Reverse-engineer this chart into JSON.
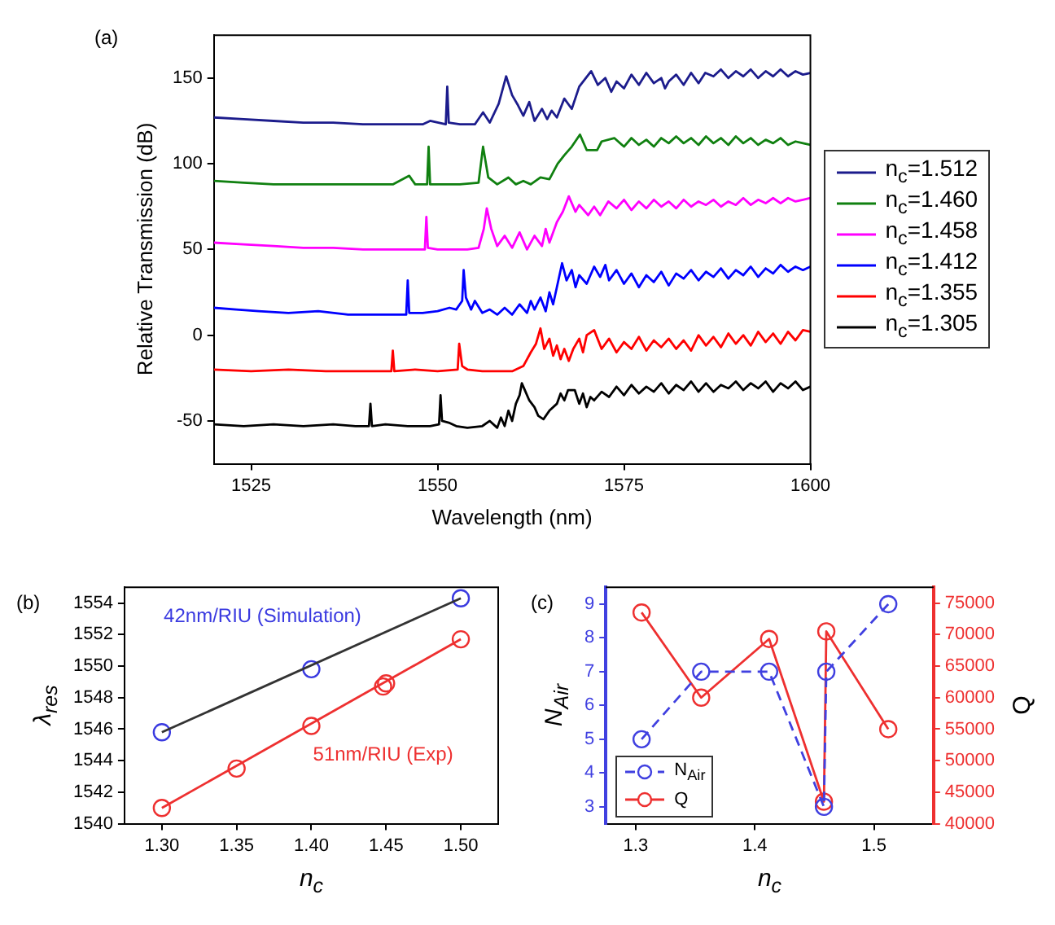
{
  "chart_data": [
    {
      "type": "line",
      "annotations": [
        "(a)"
      ],
      "xlabel": "Wavelength (nm)",
      "ylabel": "Relative Transmission (dB)",
      "xlim": [
        1520,
        1600
      ],
      "xticks": [
        1525,
        1550,
        1575,
        1600
      ],
      "ylim": [
        -75,
        175
      ],
      "yticks": [
        -50,
        0,
        50,
        100,
        150
      ],
      "grid": false,
      "legend": "right",
      "series": [
        {
          "name": "n$_{c}$=1.512",
          "color": "#1c1c8c",
          "x": [
            1520,
            1524,
            1528,
            1532,
            1536,
            1540,
            1544,
            1548,
            1549,
            1551.1,
            1551.3,
            1551.5,
            1553,
            1555,
            1556.1,
            1557,
            1558.2,
            1559.2,
            1560,
            1560.8,
            1561.5,
            1562.3,
            1563,
            1564,
            1564.7,
            1565.3,
            1566,
            1567,
            1568,
            1569,
            1570.6,
            1571.5,
            1572.5,
            1573.3,
            1574,
            1575,
            1576,
            1577,
            1578,
            1579,
            1580,
            1580.5,
            1581,
            1582,
            1583,
            1584,
            1585,
            1585.9,
            1587,
            1588,
            1589,
            1590,
            1591,
            1592,
            1593,
            1594,
            1595,
            1596,
            1597,
            1598,
            1599,
            1600
          ],
          "values": [
            127,
            126,
            125,
            124,
            124,
            123,
            123,
            123,
            125,
            123,
            145,
            124,
            123,
            123,
            130,
            124,
            135,
            151,
            140,
            134,
            128,
            136,
            125,
            132,
            126,
            131,
            127,
            138,
            132,
            145,
            154,
            146,
            150,
            142,
            148,
            144,
            152,
            146,
            153,
            147,
            150,
            144,
            148,
            152,
            146,
            153,
            147,
            153,
            151,
            155,
            150,
            154,
            151,
            155,
            150,
            154,
            151,
            155,
            151,
            154,
            152,
            153
          ]
        },
        {
          "name": "n$_{c}$=1.460",
          "color": "#108010",
          "x": [
            1520,
            1524,
            1528,
            1532,
            1536,
            1540,
            1544,
            1546.2,
            1547,
            1548.6,
            1548.8,
            1549,
            1551,
            1553,
            1555.5,
            1556.1,
            1556.8,
            1558,
            1559.5,
            1560.5,
            1561.5,
            1562.5,
            1563.8,
            1565,
            1566.1,
            1567,
            1568,
            1569.1,
            1570,
            1571.4,
            1572,
            1573.7,
            1575,
            1576,
            1577,
            1578,
            1579,
            1580,
            1581,
            1582,
            1583,
            1584,
            1585,
            1586,
            1587,
            1588,
            1589,
            1590,
            1591,
            1592,
            1593,
            1594,
            1595,
            1596,
            1597,
            1598,
            1599,
            1600
          ],
          "values": [
            90,
            89,
            88,
            88,
            88,
            88,
            88,
            93,
            88,
            88,
            110,
            88,
            88,
            88,
            89,
            110,
            92,
            88,
            92,
            88,
            90,
            88,
            92,
            91,
            100,
            105,
            110,
            117,
            108,
            108,
            113,
            115,
            110,
            115,
            111,
            114,
            110,
            115,
            112,
            116,
            112,
            115,
            111,
            116,
            112,
            115,
            111,
            116,
            112,
            115,
            111,
            114,
            112,
            115,
            111,
            113,
            112,
            111
          ]
        },
        {
          "name": "n$_{c}$=1.458",
          "color": "#ff00ff",
          "x": [
            1520,
            1524,
            1528,
            1532,
            1536,
            1540,
            1544,
            1548.3,
            1548.5,
            1548.7,
            1550,
            1552,
            1554,
            1555.5,
            1556.2,
            1556.6,
            1557.2,
            1558,
            1559,
            1560,
            1561,
            1562,
            1563,
            1564,
            1564.5,
            1565,
            1566,
            1566.8,
            1567.6,
            1568.5,
            1569,
            1570.2,
            1571,
            1571.8,
            1572.9,
            1574,
            1575,
            1576,
            1577,
            1578,
            1579,
            1580,
            1581,
            1582,
            1583,
            1584,
            1585,
            1586,
            1587,
            1588,
            1589,
            1590,
            1591,
            1592,
            1593,
            1594,
            1595,
            1596,
            1597,
            1598,
            1599,
            1600
          ],
          "values": [
            54,
            53,
            52,
            51,
            51,
            50,
            50,
            50,
            69,
            51,
            50,
            50,
            50,
            51,
            62,
            74,
            62,
            52,
            58,
            51,
            60,
            50,
            58,
            52,
            62,
            54,
            66,
            72,
            81,
            72,
            76,
            70,
            75,
            70,
            78,
            74,
            79,
            73,
            78,
            74,
            79,
            75,
            78,
            74,
            79,
            75,
            78,
            76,
            79,
            75,
            78,
            76,
            80,
            76,
            79,
            77,
            80,
            77,
            80,
            78,
            79,
            80
          ]
        },
        {
          "name": "n$_{c}$=1.412",
          "color": "#0000ff",
          "x": [
            1520,
            1523,
            1526,
            1530,
            1534,
            1538,
            1542,
            1545.8,
            1546,
            1546.2,
            1548,
            1550,
            1551.6,
            1552.5,
            1553.3,
            1553.5,
            1553.8,
            1554.5,
            1555,
            1556,
            1557,
            1558,
            1559,
            1560,
            1561,
            1562,
            1562.5,
            1563,
            1563.8,
            1564.5,
            1565,
            1565.5,
            1566,
            1566.7,
            1567.3,
            1568,
            1568.5,
            1569,
            1570,
            1571,
            1571.8,
            1572.5,
            1573,
            1574,
            1575,
            1576,
            1577,
            1578,
            1579,
            1580,
            1581,
            1582,
            1583,
            1584,
            1585,
            1586,
            1587,
            1588,
            1589,
            1590,
            1591,
            1592,
            1593,
            1594,
            1595,
            1596,
            1597,
            1598,
            1599,
            1600
          ],
          "values": [
            16,
            15,
            14,
            13,
            14,
            12,
            12,
            12,
            32,
            13,
            13,
            14,
            16,
            15,
            20,
            38,
            22,
            15,
            20,
            13,
            15,
            12,
            16,
            12,
            18,
            13,
            20,
            15,
            22,
            14,
            25,
            18,
            28,
            42,
            32,
            38,
            28,
            35,
            30,
            40,
            34,
            41,
            32,
            38,
            30,
            36,
            28,
            35,
            31,
            37,
            29,
            36,
            33,
            38,
            32,
            37,
            34,
            39,
            33,
            38,
            35,
            40,
            34,
            39,
            36,
            41,
            37,
            40,
            38,
            40
          ]
        },
        {
          "name": "n$_{c}$=1.355",
          "color": "#ff0000",
          "x": [
            1520,
            1525,
            1530,
            1535,
            1540,
            1543.8,
            1544,
            1544.2,
            1547,
            1550,
            1552.7,
            1552.9,
            1553.3,
            1554,
            1556,
            1558,
            1560,
            1561.5,
            1562.5,
            1563.2,
            1563.8,
            1564.3,
            1565,
            1565.5,
            1566,
            1566.5,
            1567,
            1567.6,
            1568.2,
            1569,
            1569.5,
            1570,
            1571,
            1572,
            1573,
            1574,
            1575,
            1576,
            1577,
            1578,
            1579,
            1580,
            1581,
            1582,
            1583,
            1584,
            1585,
            1586,
            1587,
            1588,
            1589,
            1590,
            1591,
            1592,
            1593,
            1594,
            1595,
            1596,
            1597,
            1598,
            1599,
            1600
          ],
          "values": [
            -20,
            -21,
            -20,
            -21,
            -21,
            -21,
            -9,
            -21,
            -20,
            -21,
            -20,
            -5,
            -18,
            -20,
            -21,
            -21,
            -21,
            -18,
            -10,
            -5,
            4,
            -8,
            -2,
            -12,
            -6,
            -14,
            -8,
            -15,
            -8,
            -2,
            -10,
            0,
            3,
            -8,
            -2,
            -10,
            -4,
            -8,
            -1,
            -9,
            -3,
            -7,
            -2,
            -8,
            -3,
            -9,
            0,
            -6,
            -1,
            -7,
            1,
            -5,
            0,
            -6,
            2,
            -4,
            1,
            -5,
            2,
            -3,
            3,
            2
          ]
        },
        {
          "name": "n$_{c}$=1.305",
          "color": "#000000",
          "x": [
            1520,
            1524,
            1528,
            1532,
            1536,
            1539,
            1540.8,
            1541,
            1541.2,
            1543,
            1546,
            1549,
            1550.2,
            1550.4,
            1550.6,
            1551.5,
            1552.5,
            1554,
            1556,
            1557,
            1558,
            1558.5,
            1559,
            1559.5,
            1560,
            1560.5,
            1561,
            1561.3,
            1561.8,
            1562.3,
            1563,
            1563.5,
            1564.2,
            1565,
            1566,
            1566.5,
            1567,
            1567.5,
            1568.4,
            1569,
            1569.5,
            1570,
            1570.5,
            1571,
            1572,
            1573,
            1574,
            1575,
            1576,
            1577,
            1578,
            1579,
            1580,
            1581,
            1582,
            1583,
            1584,
            1585,
            1586,
            1587,
            1588,
            1589,
            1590,
            1591,
            1592,
            1593,
            1594,
            1595,
            1596,
            1597,
            1598,
            1599,
            1600
          ],
          "values": [
            -52,
            -53,
            -52,
            -53,
            -52,
            -53,
            -53,
            -40,
            -53,
            -52,
            -53,
            -53,
            -52,
            -35,
            -50,
            -51,
            -53,
            -54,
            -53,
            -50,
            -54,
            -48,
            -53,
            -44,
            -50,
            -40,
            -35,
            -28,
            -33,
            -38,
            -42,
            -47,
            -49,
            -44,
            -40,
            -34,
            -38,
            -32,
            -32,
            -40,
            -34,
            -42,
            -36,
            -38,
            -33,
            -36,
            -30,
            -35,
            -29,
            -34,
            -30,
            -33,
            -28,
            -34,
            -29,
            -32,
            -27,
            -33,
            -28,
            -33,
            -29,
            -31,
            -27,
            -32,
            -28,
            -31,
            -27,
            -33,
            -28,
            -31,
            -27,
            -32,
            -30
          ]
        }
      ]
    },
    {
      "type": "scatter",
      "annotations": [
        "(b)"
      ],
      "xlabel": "n$_{c}$",
      "ylabel": "λ$_{res}$",
      "xlim": [
        1.275,
        1.525
      ],
      "xticks": [
        {
          "value": 1.3,
          "label": "1.30"
        },
        {
          "value": 1.35,
          "label": "1.35"
        },
        {
          "value": 1.4,
          "label": "1.40"
        },
        {
          "value": 1.45,
          "label": "1.45"
        },
        {
          "value": 1.5,
          "label": "1.50"
        }
      ],
      "ylim": [
        1540,
        1555
      ],
      "yticks": [
        1540,
        1542,
        1544,
        1546,
        1548,
        1550,
        1552,
        1554
      ],
      "grid": false,
      "marker": "circle",
      "series": [
        {
          "type": "line",
          "marker": "none",
          "color": "#333333",
          "x": [
            1.3,
            1.5
          ],
          "values": [
            1545.8,
            1554.3
          ]
        },
        {
          "type": "line",
          "marker": "none",
          "color": "#ee3030",
          "x": [
            1.3,
            1.5
          ],
          "values": [
            1541.0,
            1551.7
          ]
        },
        {
          "name": "42nm/RIU (Simulation)",
          "color": "#3a3ae0",
          "x": [
            1.3,
            1.4,
            1.5
          ],
          "values": [
            1545.8,
            1549.8,
            1554.3
          ]
        },
        {
          "name": "51nm/RIU (Exp)",
          "color": "#ee3030",
          "x": [
            1.3,
            1.35,
            1.4,
            1.448,
            1.45,
            1.5
          ],
          "values": [
            1541.0,
            1543.5,
            1546.2,
            1548.7,
            1548.9,
            1551.7
          ]
        }
      ]
    },
    {
      "type": "line",
      "annotations": [
        "(c)"
      ],
      "xlabel": "n$_{c}$",
      "ylabel": "N$_{Air}$",
      "y2label": "Q",
      "xlim": [
        1.275,
        1.55
      ],
      "xticks": [
        1.3,
        1.4,
        1.5
      ],
      "ylim": [
        2.5,
        9.5
      ],
      "yticks": [
        3,
        4,
        5,
        6,
        7,
        8,
        9
      ],
      "y2lim": [
        40000,
        77500
      ],
      "y2ticks": [
        40000,
        45000,
        50000,
        55000,
        60000,
        65000,
        70000,
        75000
      ],
      "grid": false,
      "legend": "bottom left",
      "marker": "circle",
      "x": [
        1.305,
        1.355,
        1.412,
        1.458,
        1.46,
        1.512
      ],
      "series": [
        {
          "name": "N$_{Air}$",
          "color": "#4040e0",
          "line_style": "dashed",
          "values": [
            5,
            7,
            7,
            3,
            7,
            9
          ]
        },
        {
          "name": "Q",
          "color": "#ee3030",
          "axis": "y2",
          "values": [
            73500,
            60000,
            69300,
            43500,
            70500,
            55000
          ]
        }
      ]
    }
  ]
}
